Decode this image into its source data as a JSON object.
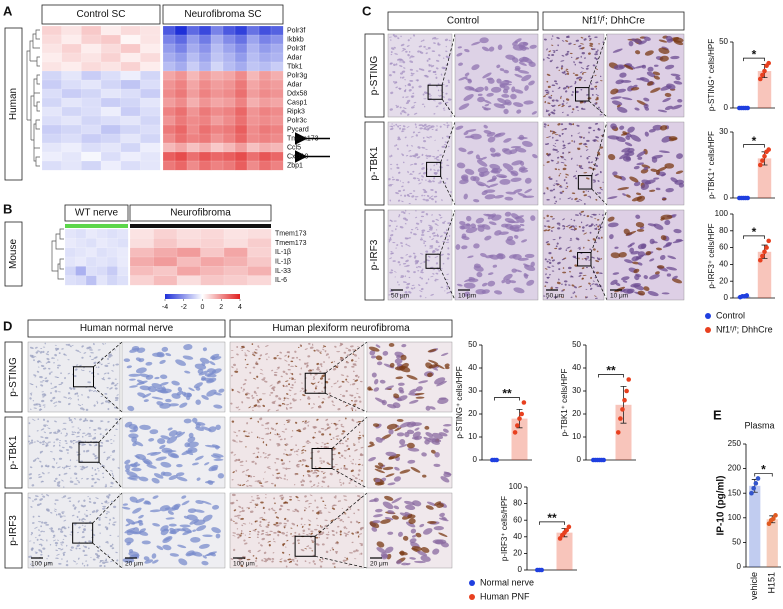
{
  "panel_labels": [
    "A",
    "B",
    "C",
    "D",
    "E"
  ],
  "chart_data": [
    {
      "type": "heatmap",
      "side_label": "Human",
      "color_range": [
        -2.5,
        2.5
      ],
      "rows": [
        "Polr3f",
        "Ikbkb",
        "Polr3f",
        "Adar",
        "Tbk1",
        "Polr3g",
        "Adar",
        "Ddx58",
        "Casp1",
        "Ripk3",
        "Polr3c",
        "Pycard",
        "Tmem173",
        "Ccl5",
        "Cxcl10",
        "Zbp1"
      ],
      "groups": [
        {
          "name": "Control SC",
          "values": [
            [
              0.5,
              0.3,
              0.6,
              0.2,
              0.4,
              0.3
            ],
            [
              0.4,
              0.2,
              0.5,
              0.6,
              0.1,
              0.3
            ],
            [
              0.3,
              0.5,
              0.2,
              0.4,
              0.6,
              0.2
            ],
            [
              0.2,
              0.4,
              0.3,
              0.5,
              0.2,
              0.4
            ],
            [
              0.3,
              0.2,
              0.4,
              0.3,
              0.5,
              0.2
            ],
            [
              -0.5,
              -0.3,
              -0.6,
              -0.4,
              -0.2,
              -0.5
            ],
            [
              -0.6,
              -0.4,
              -0.3,
              -0.5,
              -0.7,
              -0.4
            ],
            [
              -0.4,
              -0.6,
              -0.5,
              -0.3,
              -0.4,
              -0.6
            ],
            [
              -0.5,
              -0.3,
              -0.4,
              -0.6,
              -0.5,
              -0.3
            ],
            [
              -0.3,
              -0.5,
              -0.4,
              -0.2,
              -0.6,
              -0.4
            ],
            [
              -0.4,
              -0.3,
              -0.5,
              -0.4,
              -0.3,
              -0.5
            ],
            [
              -0.6,
              -0.5,
              -0.4,
              -0.7,
              -0.5,
              -0.4
            ],
            [
              -0.5,
              -0.4,
              -0.6,
              -0.5,
              -0.3,
              -0.5
            ],
            [
              -0.3,
              -0.2,
              -0.4,
              -0.3,
              -0.5,
              -0.2
            ],
            [
              -0.2,
              -0.3,
              -0.1,
              -0.4,
              -0.2,
              -0.3
            ],
            [
              -0.4,
              -0.3,
              -0.5,
              -0.2,
              -0.4,
              -0.3
            ]
          ]
        },
        {
          "name": "Neurofibroma SC",
          "values": [
            [
              -2,
              -2.5,
              -1.8,
              -2.2,
              -1.5,
              -2,
              -2.3,
              -1.7,
              -2.1,
              -1.9
            ],
            [
              -1.5,
              -1.8,
              -1.2,
              -1.6,
              -1,
              -1.4,
              -1.7,
              -1.1,
              -1.5,
              -1.3
            ],
            [
              -1.2,
              -1.5,
              -1,
              -1.3,
              -0.8,
              -1.1,
              -1.4,
              -0.9,
              -1.2,
              -1
            ],
            [
              -1,
              -1.2,
              -0.8,
              -1.1,
              -0.7,
              -0.9,
              -1.2,
              -0.8,
              -1,
              -0.9
            ],
            [
              -0.8,
              -1,
              -0.6,
              -0.9,
              -0.5,
              -0.8,
              -1,
              -0.7,
              -0.8,
              -0.6
            ],
            [
              1,
              1.2,
              0.8,
              1.1,
              0.9,
              1,
              1.3,
              0.8,
              1.1,
              0.9
            ],
            [
              1.2,
              1.4,
              1,
              1.3,
              1.1,
              1.2,
              1.5,
              1,
              1.2,
              1.1
            ],
            [
              1.3,
              1.5,
              1.1,
              1.4,
              1.2,
              1.3,
              1.6,
              1.1,
              1.3,
              1.2
            ],
            [
              1.1,
              1.3,
              0.9,
              1.2,
              1,
              1.1,
              1.4,
              0.9,
              1.1,
              1
            ],
            [
              1.4,
              1.6,
              1.2,
              1.5,
              1.3,
              1.4,
              1.7,
              1.2,
              1.4,
              1.3
            ],
            [
              1.2,
              1.5,
              1.3,
              1.4,
              1.1,
              1.3,
              1.6,
              1.2,
              1.3,
              1.2
            ],
            [
              1.5,
              1.7,
              1.3,
              1.6,
              1.4,
              1.5,
              1.8,
              1.3,
              1.5,
              1.4
            ],
            [
              1.3,
              1.6,
              1.4,
              1.5,
              1.2,
              1.4,
              1.7,
              1.3,
              1.4,
              1.3
            ],
            [
              0.8,
              1,
              0.7,
              0.9,
              0.6,
              0.8,
              1.1,
              0.7,
              0.9,
              0.8
            ],
            [
              1.8,
              2,
              1.6,
              1.9,
              1.7,
              1.8,
              2,
              1.6,
              1.9,
              1.7
            ],
            [
              1.5,
              1.7,
              1.3,
              1.6,
              1.4,
              1.5,
              1.8,
              1.3,
              1.6,
              1.4
            ]
          ]
        }
      ]
    },
    {
      "type": "heatmap",
      "side_label": "Mouse",
      "rows": [
        "Tmem173",
        "Tmem173",
        "IL-1β",
        "IL-1β",
        "IL-33",
        "IL-6"
      ],
      "colorbar": {
        "ticks": [
          -4,
          -2,
          0,
          2,
          4
        ]
      },
      "groups": [
        {
          "name": "WT nerve",
          "bar_color": "#5cd64a",
          "values": [
            [
              -0.5,
              -0.6,
              -0.4,
              -0.5,
              -0.6,
              -0.5
            ],
            [
              -0.4,
              -0.5,
              -0.6,
              -0.4,
              -0.5,
              -0.6
            ],
            [
              -0.6,
              -0.5,
              -0.4,
              -0.6,
              -0.5,
              -0.4
            ],
            [
              -0.5,
              -0.4,
              -0.6,
              -0.5,
              -0.6,
              -0.4
            ],
            [
              -0.8,
              -1.5,
              -0.6,
              -0.7,
              -1,
              -0.5
            ],
            [
              -0.6,
              -0.7,
              -1.2,
              -0.5,
              -0.8,
              -0.6
            ]
          ]
        },
        {
          "name": "Neurofibroma",
          "bar_color": "#111111",
          "values": [
            [
              0.5,
              0.8,
              0.6,
              0.7,
              0.5,
              0.6
            ],
            [
              0.6,
              1,
              0.7,
              0.8,
              0.6,
              0.9
            ],
            [
              1.2,
              1.5,
              1.8,
              1,
              1.6,
              0.8
            ],
            [
              1.5,
              1.8,
              1.2,
              1.6,
              1.4,
              1
            ],
            [
              1.2,
              1,
              1.6,
              1.3,
              1.1,
              1.4
            ],
            [
              0.8,
              1.2,
              0.6,
              1,
              0.9,
              0.7
            ]
          ]
        }
      ]
    },
    {
      "type": "bar",
      "y_label": "p-STING⁺ cells/HPF",
      "ylim": [
        0,
        50
      ],
      "yticks": [
        0,
        50
      ],
      "colors": [
        "#1f3fe0",
        "#e8401f"
      ],
      "values": [
        0,
        28
      ],
      "errors": [
        0.5,
        5
      ],
      "points": [
        [
          0,
          0,
          0,
          0,
          0
        ],
        [
          22,
          25,
          28,
          32,
          34
        ]
      ],
      "significance": "*"
    },
    {
      "type": "bar",
      "y_label": "p-TBK1⁺ cells/HPF",
      "ylim": [
        0,
        30
      ],
      "yticks": [
        0,
        30
      ],
      "colors": [
        "#1f3fe0",
        "#e8401f"
      ],
      "values": [
        0,
        18
      ],
      "errors": [
        0.3,
        3
      ],
      "points": [
        [
          0,
          0,
          0,
          0,
          0
        ],
        [
          15,
          17,
          19,
          21,
          22
        ]
      ],
      "significance": "*"
    },
    {
      "type": "bar",
      "y_label": "p-IRF3⁺ cells/HPF",
      "ylim": [
        0,
        100
      ],
      "yticks": [
        0,
        20,
        40,
        60,
        80,
        100
      ],
      "colors": [
        "#1f3fe0",
        "#e8401f"
      ],
      "values": [
        2,
        55
      ],
      "errors": [
        1,
        8
      ],
      "points": [
        [
          1,
          2,
          2,
          3
        ],
        [
          45,
          50,
          55,
          60,
          68
        ]
      ],
      "significance": "*"
    },
    {
      "type": "bar",
      "y_label": "p-STING⁺ cells/HPF",
      "ylim": [
        0,
        50
      ],
      "yticks": [
        0,
        10,
        20,
        30,
        40,
        50
      ],
      "colors": [
        "#1f3fe0",
        "#e8401f"
      ],
      "values": [
        0,
        18
      ],
      "errors": [
        0.3,
        4
      ],
      "points": [
        [
          0,
          0,
          0
        ],
        [
          12,
          15,
          18,
          20,
          25
        ]
      ],
      "significance": "**"
    },
    {
      "type": "bar",
      "y_label": "p-TBK1⁺ cells/HPF",
      "ylim": [
        0,
        50
      ],
      "yticks": [
        0,
        10,
        20,
        30,
        40,
        50
      ],
      "colors": [
        "#1f3fe0",
        "#e8401f"
      ],
      "values": [
        0,
        24
      ],
      "errors": [
        0.3,
        8
      ],
      "points": [
        [
          0,
          0,
          0,
          0,
          0,
          0
        ],
        [
          12,
          18,
          22,
          26,
          30,
          35
        ]
      ],
      "significance": "**"
    },
    {
      "type": "bar",
      "y_label": "p-IRF3⁺ cells/HPF",
      "ylim": [
        0,
        100
      ],
      "yticks": [
        0,
        20,
        40,
        60,
        80,
        100
      ],
      "colors": [
        "#1f3fe0",
        "#e8401f"
      ],
      "values": [
        0,
        45
      ],
      "errors": [
        0.5,
        5
      ],
      "points": [
        [
          0,
          0,
          0
        ],
        [
          38,
          42,
          45,
          48,
          52
        ]
      ],
      "significance": "**"
    },
    {
      "type": "bar",
      "title": "Plasma",
      "y_label": "IP-10 (pg/ml)",
      "ylim": [
        0,
        250
      ],
      "yticks": [
        0,
        50,
        100,
        150,
        200,
        250
      ],
      "colors": [
        "#3355cc",
        "#e05a20"
      ],
      "categories": [
        "vehicle",
        "H151"
      ],
      "values": [
        165,
        97
      ],
      "errors": [
        13,
        7
      ],
      "points": [
        [
          150,
          160,
          170,
          180
        ],
        [
          88,
          95,
          98,
          105
        ]
      ],
      "significance": "*"
    }
  ],
  "image_panels": [
    {
      "columns": [
        "Control",
        "Nf1ᶠ/ᶠ; DhhCre"
      ],
      "rows": [
        "p-STING",
        "p-TBK1",
        "p-IRF3"
      ],
      "scale_bars": [
        "50 μm",
        "10 μm",
        "50 μm",
        "10 μm"
      ]
    },
    {
      "columns": [
        "Human normal nerve",
        "Human plexiform neurofibroma"
      ],
      "rows": [
        "p-STING",
        "p-TBK1",
        "p-IRF3"
      ],
      "scale_bars": [
        "100 μm",
        "20 μm",
        "100 μm",
        "20 μm"
      ]
    }
  ],
  "legends": [
    [
      {
        "name": "Control",
        "color": "#1f3fe0"
      },
      {
        "name": "Nf1ᶠ/ᶠ; DhhCre",
        "color": "#e8401f"
      }
    ],
    [
      {
        "name": "Normal nerve",
        "color": "#1f3fe0"
      },
      {
        "name": "Human PNF",
        "color": "#e8401f"
      }
    ]
  ]
}
